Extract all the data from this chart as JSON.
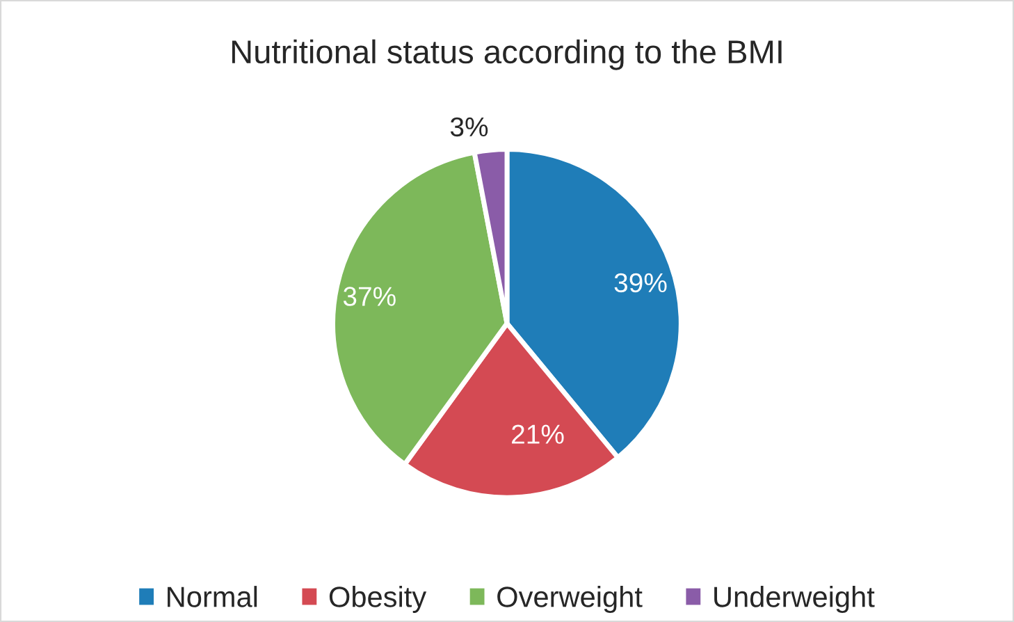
{
  "chart_data": {
    "type": "pie",
    "title": "Nutritional status according to the BMI",
    "categories": [
      "Normal",
      "Obesity",
      "Overweight",
      "Underweight"
    ],
    "values": [
      39,
      21,
      37,
      3
    ],
    "value_labels": [
      "39%",
      "21%",
      "37%",
      "3%"
    ],
    "colors": [
      "#1f7db8",
      "#d44a53",
      "#7db85a",
      "#8a5ca8"
    ],
    "legend": "bottom"
  }
}
